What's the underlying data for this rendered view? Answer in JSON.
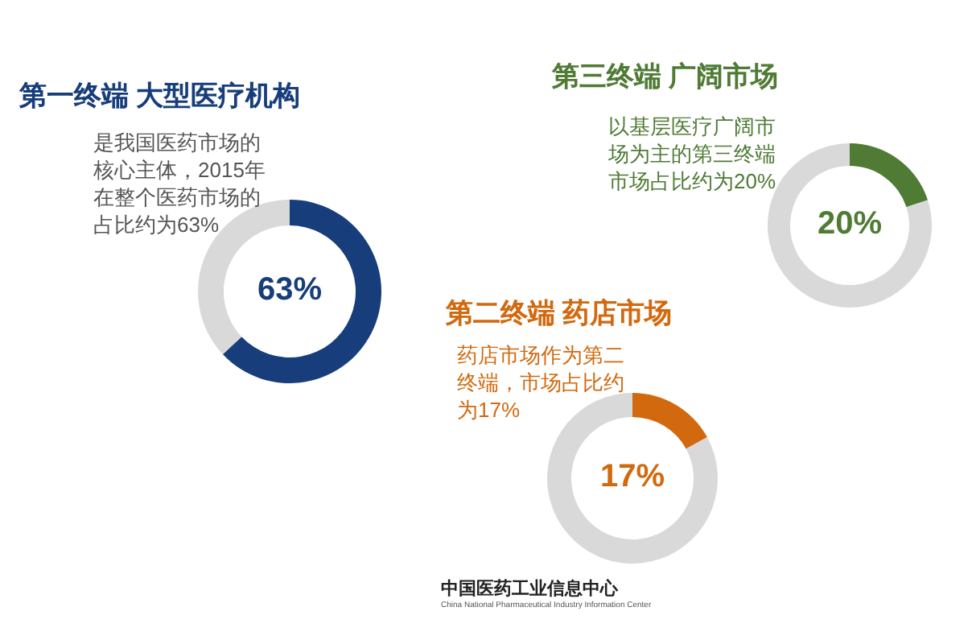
{
  "chart_data": [
    {
      "type": "donut",
      "title": "第一终端 大型医疗机构",
      "annotations": [
        "是我国医药市场的核心主体，2015年在整个医药市场的占比约为63%",
        "63%"
      ],
      "categories": [
        null,
        null
      ],
      "values": [
        63,
        37
      ],
      "colors": [
        "#173d7a",
        "#d9d9d9"
      ]
    },
    {
      "type": "donut",
      "title": "第三终端 广阔市场",
      "annotations": [
        "以基层医疗广阔市场为主的第三终端市场占比约为20%",
        "20%"
      ],
      "categories": [
        null,
        null
      ],
      "values": [
        20,
        80
      ],
      "colors": [
        "#4f7b35",
        "#d9d9d9"
      ]
    },
    {
      "type": "donut",
      "title": "第二终端 药店市场",
      "annotations": [
        "药店市场作为第二终端，市场占比约为17%",
        "17%",
        "中国医药工业信息中心",
        "China National Pharmaceutical Industry Information Center"
      ],
      "categories": [
        null,
        null
      ],
      "values": [
        17,
        83
      ],
      "colors": [
        "#d2690e",
        "#d9d9d9"
      ]
    }
  ]
}
